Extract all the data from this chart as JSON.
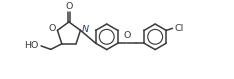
{
  "bg_color": "#ffffff",
  "line_color": "#3a3a3a",
  "bond_lw": 1.1,
  "font_size": 6.8,
  "figsize": [
    2.34,
    0.79
  ],
  "dpi": 100,
  "xlim": [
    -0.3,
    2.45
  ],
  "ylim": [
    -0.45,
    0.65
  ]
}
